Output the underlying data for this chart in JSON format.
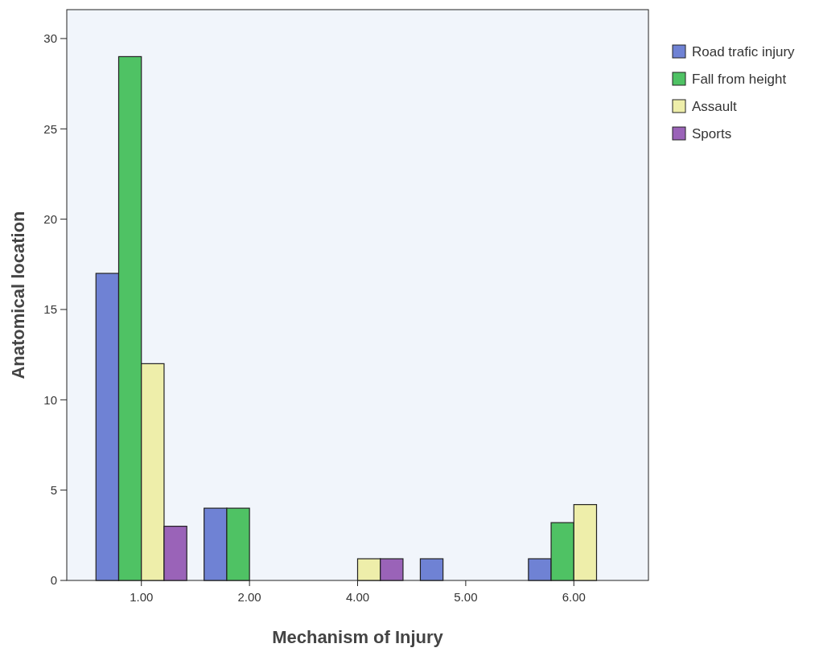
{
  "chart_data": {
    "type": "bar",
    "xlabel": "Mechanism of Injury",
    "ylabel": "Anatomical location",
    "categories": [
      "1.00",
      "2.00",
      "4.00",
      "5.00",
      "6.00"
    ],
    "series": [
      {
        "name": "Road trafic injury",
        "color": "#6f82d4",
        "values": [
          17,
          4,
          null,
          1.2,
          1.2
        ]
      },
      {
        "name": "Fall from height",
        "color": "#4fc264",
        "values": [
          29,
          4,
          null,
          null,
          3.2
        ]
      },
      {
        "name": "Assault",
        "color": "#eeeeaa",
        "values": [
          12,
          null,
          1.2,
          null,
          4.2
        ]
      },
      {
        "name": "Sports",
        "color": "#9a63b8",
        "values": [
          3,
          null,
          1.2,
          null,
          null
        ]
      }
    ],
    "ylim": [
      0,
      31.6
    ],
    "yticks": [
      0,
      5,
      10,
      15,
      20,
      25,
      30
    ],
    "grid": false,
    "legend": "top right"
  }
}
